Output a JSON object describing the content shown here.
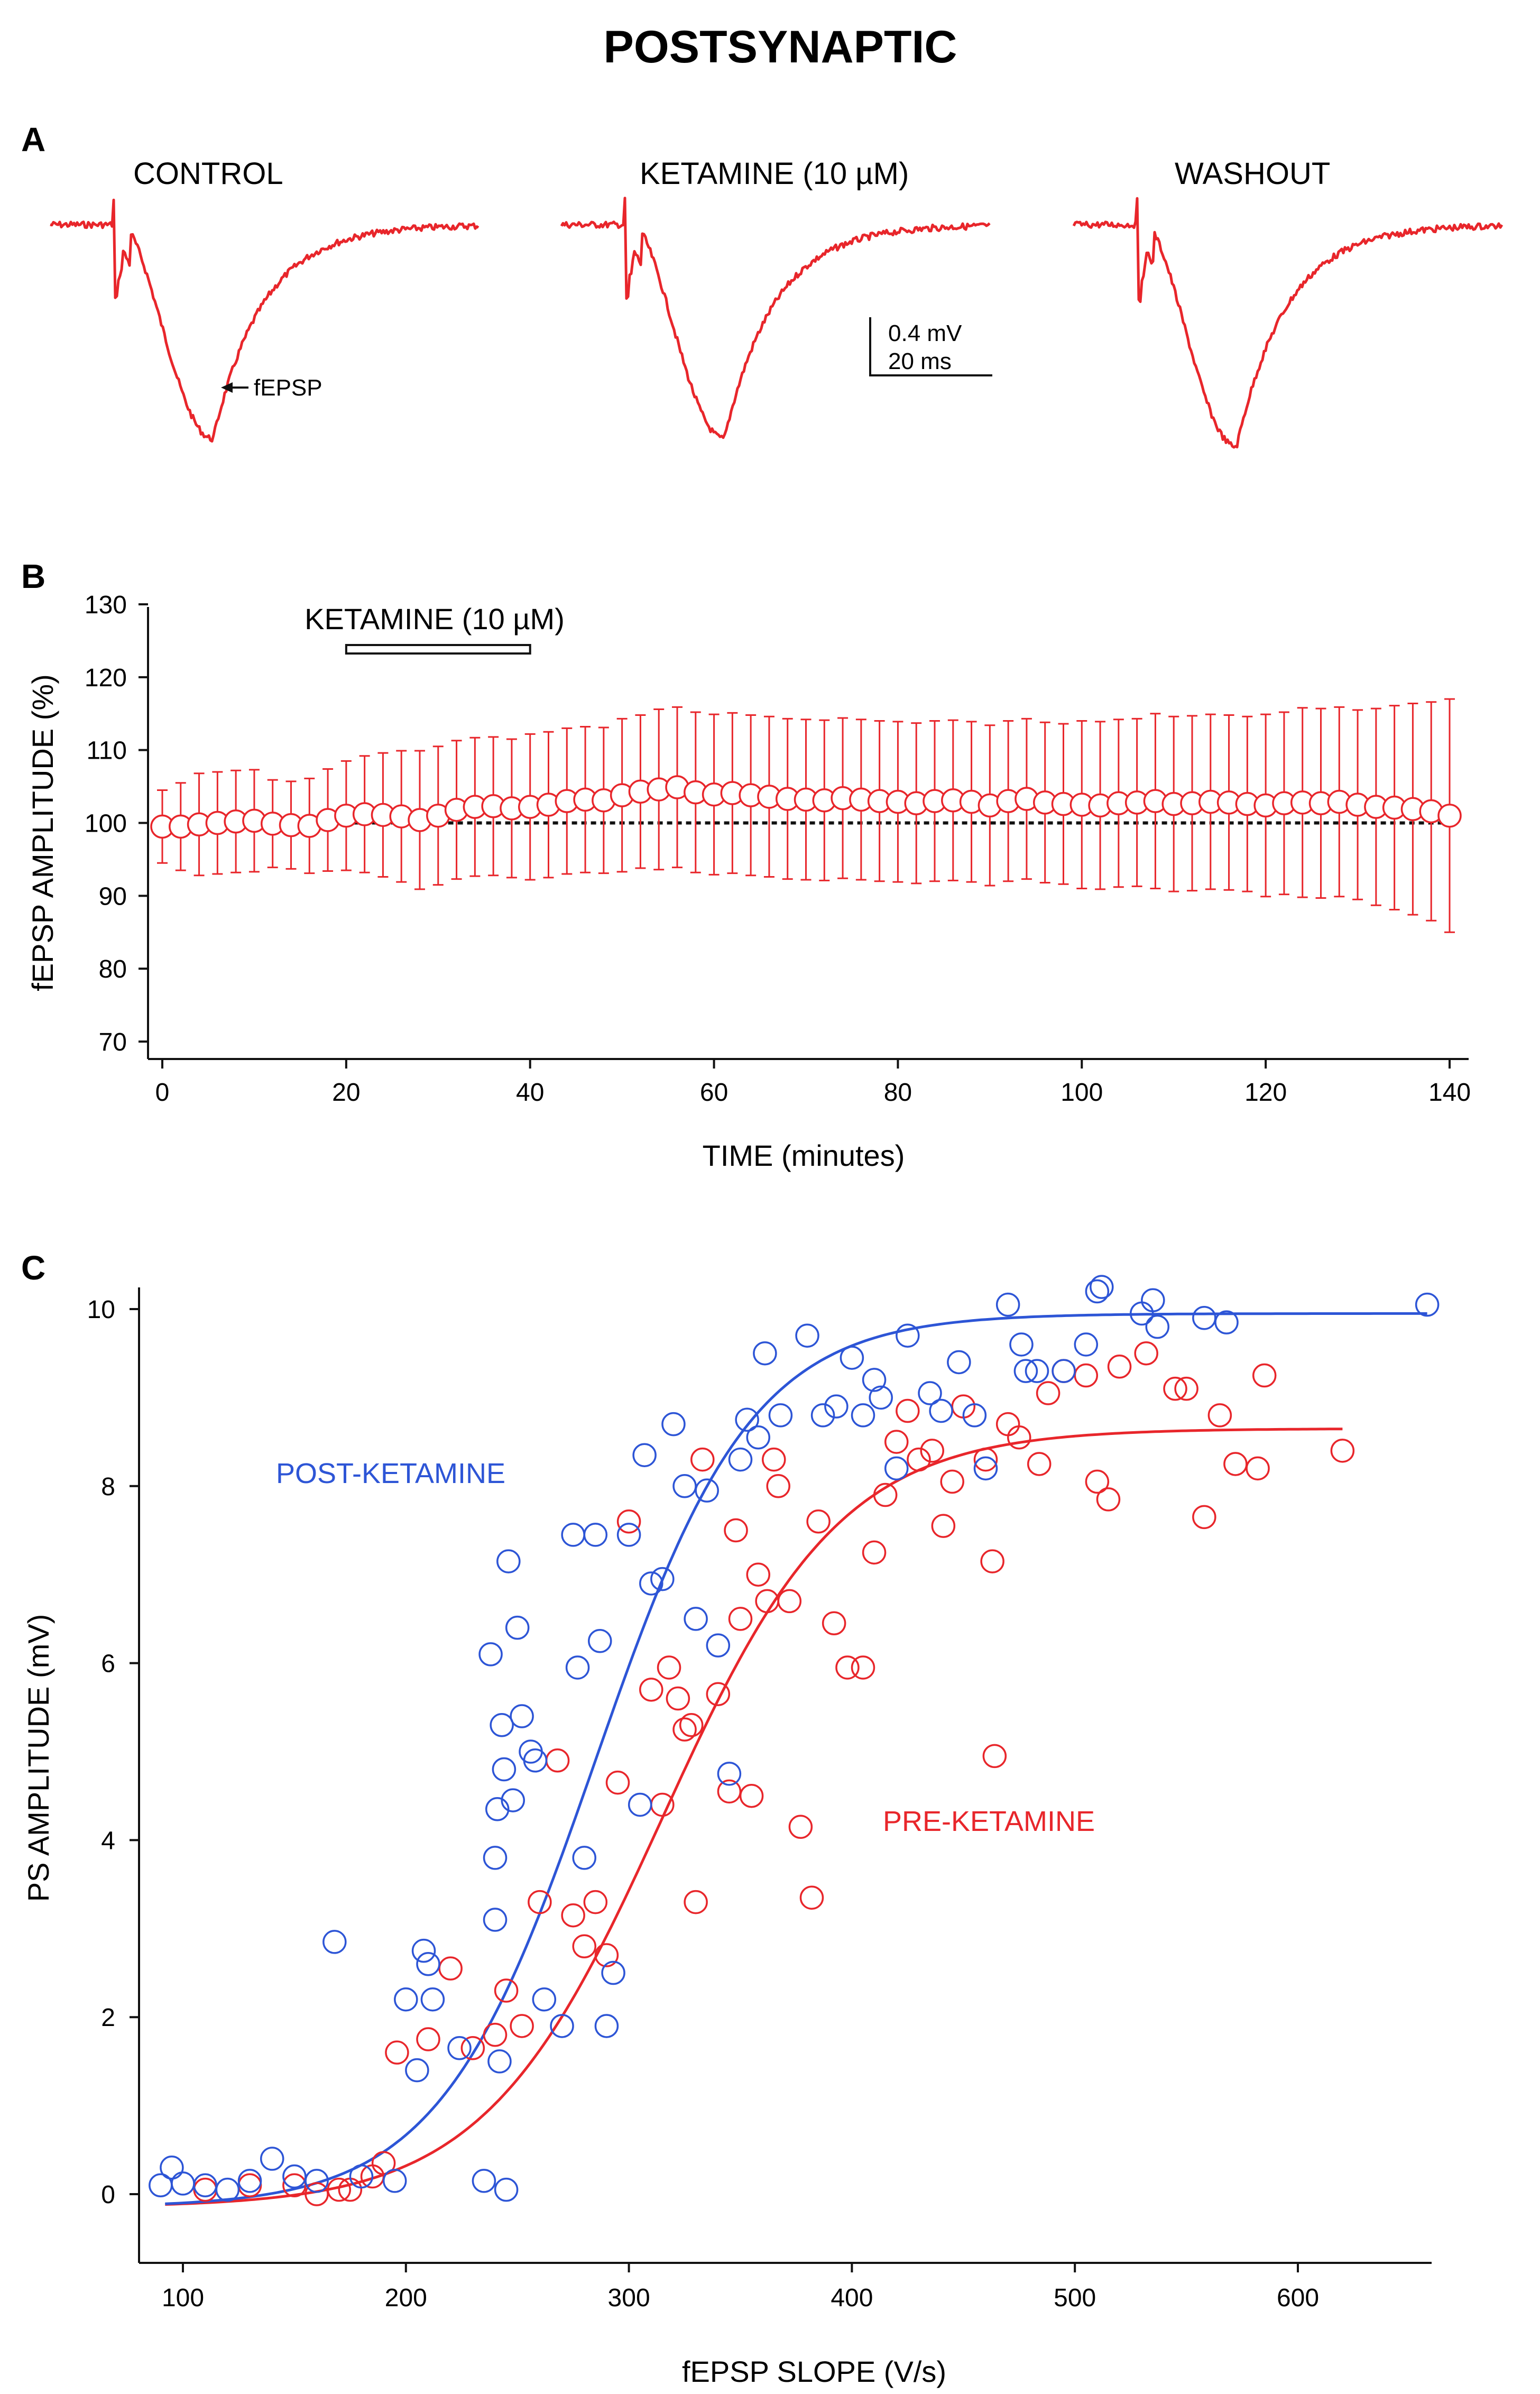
{
  "figure": {
    "title": "POSTSYNAPTIC",
    "panel_a_letter": "A",
    "panel_b_letter": "B",
    "panel_c_letter": "C"
  },
  "panel_a": {
    "conditions": [
      "CONTROL",
      "KETAMINE (10 µM)",
      "WASHOUT"
    ],
    "annotation": "fEPSP",
    "scale_bar": {
      "voltage": "0.4 mV",
      "time": "20 ms"
    },
    "trace_color": "#e8262b"
  },
  "colors": {
    "pre": "#e8262b",
    "post": "#2d55d6",
    "axis": "#111111"
  },
  "chart_data": [
    {
      "type": "scatter",
      "panel": "B",
      "title": "",
      "xlabel": "TIME  (minutes)",
      "ylabel": "fEPSP AMPLITUDE (%)",
      "xlim": [
        -2,
        141
      ],
      "ylim": [
        68,
        131
      ],
      "xticks": [
        0,
        20,
        40,
        60,
        80,
        100,
        120,
        140
      ],
      "xtick_labels": [
        "0",
        "20",
        "40",
        "60",
        "80",
        "100",
        "120",
        "140"
      ],
      "yticks": [
        70,
        80,
        90,
        100,
        110,
        120,
        130
      ],
      "ytick_labels": [
        "70",
        "80",
        "90",
        "100",
        "110",
        "120",
        "130"
      ],
      "baseline": 100,
      "drug_bar": {
        "label": "KETAMINE (10 µM)",
        "start": 20,
        "end": 40
      },
      "series": [
        {
          "name": "fEPSP amplitude",
          "x": [
            0,
            2,
            4,
            6,
            8,
            10,
            12,
            14,
            16,
            18,
            20,
            22,
            24,
            26,
            28,
            30,
            32,
            34,
            36,
            38,
            40,
            42,
            44,
            46,
            48,
            50,
            52,
            54,
            56,
            58,
            60,
            62,
            64,
            66,
            68,
            70,
            72,
            74,
            76,
            78,
            80,
            82,
            84,
            86,
            88,
            90,
            92,
            94,
            96,
            98,
            100,
            102,
            104,
            106,
            108,
            110,
            112,
            114,
            116,
            118,
            120,
            122,
            124,
            126,
            128,
            130,
            132,
            134,
            136,
            138,
            140
          ],
          "values": [
            99.5,
            99.5,
            99.8,
            100,
            100.2,
            100.3,
            99.9,
            99.7,
            99.6,
            100.4,
            101,
            101.2,
            101.1,
            100.9,
            100.4,
            101,
            101.8,
            102.2,
            102.3,
            102,
            102.2,
            102.5,
            103,
            103.2,
            103.1,
            103.8,
            104.3,
            104.6,
            104.9,
            104.2,
            103.9,
            104.1,
            103.8,
            103.6,
            103.3,
            103.2,
            103.1,
            103.4,
            103.2,
            103,
            102.9,
            102.7,
            103,
            103.1,
            102.9,
            102.4,
            103,
            103.3,
            102.8,
            102.6,
            102.5,
            102.4,
            102.7,
            102.8,
            103,
            102.6,
            102.7,
            102.9,
            102.8,
            102.6,
            102.4,
            102.7,
            102.8,
            102.7,
            102.9,
            102.5,
            102.2,
            102.1,
            101.9,
            101.6,
            101
          ],
          "error": [
            5,
            6,
            7,
            7,
            7,
            7,
            6,
            6,
            6.5,
            7,
            7.5,
            8,
            8.5,
            9,
            9.5,
            9.5,
            9.5,
            9.5,
            9.5,
            9.5,
            10,
            10,
            10,
            10,
            10,
            10.5,
            10.5,
            11,
            11,
            11,
            11,
            11,
            11,
            11,
            11,
            11,
            11,
            11,
            11,
            11,
            11,
            11,
            11,
            11,
            11,
            11,
            11,
            11,
            11,
            11,
            11.5,
            11.5,
            11.5,
            11.5,
            12,
            12,
            12,
            12,
            12,
            12,
            12.5,
            12.5,
            13,
            13,
            13,
            13,
            13.5,
            14,
            14.5,
            15,
            16
          ]
        }
      ]
    },
    {
      "type": "scatter",
      "panel": "C",
      "title": "",
      "xlabel": "fEPSP SLOPE (V/s)",
      "ylabel": "PS AMPLITUDE (mV)",
      "xlim": [
        82,
        660
      ],
      "ylim": [
        -0.5,
        10.3
      ],
      "xticks": [
        100,
        200,
        300,
        400,
        500,
        600
      ],
      "xtick_labels": [
        "100",
        "200",
        "300",
        "400",
        "500",
        "600"
      ],
      "yticks": [
        0,
        2,
        4,
        6,
        8,
        10
      ],
      "ytick_labels": [
        "0",
        "2",
        "4",
        "6",
        "8",
        "10"
      ],
      "series": [
        {
          "name": "POST-KETAMINE",
          "color": "#2d55d6",
          "fit": {
            "A": 10.1,
            "x50": 285,
            "k": 35,
            "x_range": [
              92,
              658
            ]
          },
          "points": [
            [
              90,
              0.1
            ],
            [
              95,
              0.3
            ],
            [
              100,
              0.12
            ],
            [
              110,
              0.1
            ],
            [
              120,
              0.05
            ],
            [
              130,
              0.15
            ],
            [
              140,
              0.4
            ],
            [
              150,
              0.2
            ],
            [
              160,
              0.15
            ],
            [
              168,
              2.85
            ],
            [
              180,
              0.2
            ],
            [
              195,
              0.15
            ],
            [
              200,
              2.2
            ],
            [
              205,
              1.4
            ],
            [
              208,
              2.75
            ],
            [
              210,
              2.6
            ],
            [
              212,
              2.2
            ],
            [
              224,
              1.65
            ],
            [
              235,
              0.15
            ],
            [
              238,
              6.1
            ],
            [
              240,
              3.1
            ],
            [
              241,
              4.35
            ],
            [
              243,
              5.3
            ],
            [
              244,
              4.8
            ],
            [
              246,
              7.15
            ],
            [
              248,
              4.45
            ],
            [
              250,
              6.4
            ],
            [
              252,
              5.4
            ],
            [
              256,
              5.0
            ],
            [
              258,
              4.9
            ],
            [
              240,
              3.8
            ],
            [
              242,
              1.5
            ],
            [
              245,
              0.05
            ],
            [
              262,
              2.2
            ],
            [
              270,
              1.9
            ],
            [
              275,
              7.45
            ],
            [
              277,
              5.95
            ],
            [
              280,
              3.8
            ],
            [
              285,
              7.45
            ],
            [
              287,
              6.25
            ],
            [
              290,
              1.9
            ],
            [
              293,
              2.5
            ],
            [
              300,
              7.45
            ],
            [
              305,
              4.4
            ],
            [
              307,
              8.35
            ],
            [
              310,
              6.9
            ],
            [
              315,
              6.95
            ],
            [
              320,
              8.7
            ],
            [
              325,
              8.0
            ],
            [
              330,
              6.5
            ],
            [
              335,
              7.95
            ],
            [
              340,
              6.2
            ],
            [
              345,
              4.75
            ],
            [
              350,
              8.3
            ],
            [
              353,
              8.75
            ],
            [
              358,
              8.55
            ],
            [
              361,
              9.5
            ],
            [
              368,
              8.8
            ],
            [
              380,
              9.7
            ],
            [
              387,
              8.8
            ],
            [
              393,
              8.9
            ],
            [
              400,
              9.45
            ],
            [
              405,
              8.8
            ],
            [
              410,
              9.2
            ],
            [
              413,
              9.0
            ],
            [
              420,
              8.2
            ],
            [
              425,
              9.7
            ],
            [
              435,
              9.05
            ],
            [
              440,
              8.85
            ],
            [
              448,
              9.4
            ],
            [
              455,
              8.8
            ],
            [
              460,
              8.2
            ],
            [
              470,
              10.05
            ],
            [
              476,
              9.6
            ],
            [
              478,
              9.3
            ],
            [
              483,
              9.3
            ],
            [
              495,
              9.3
            ],
            [
              505,
              9.6
            ],
            [
              510,
              10.2
            ],
            [
              512,
              10.25
            ],
            [
              530,
              9.95
            ],
            [
              535,
              10.1
            ],
            [
              537,
              9.8
            ],
            [
              558,
              9.9
            ],
            [
              568,
              9.85
            ],
            [
              658,
              10.05
            ]
          ]
        },
        {
          "name": "PRE-KETAMINE",
          "color": "#e8262b",
          "fit": {
            "A": 8.8,
            "x50": 315,
            "k": 40,
            "x_range": [
              92,
              620
            ]
          },
          "points": [
            [
              110,
              0.05
            ],
            [
              130,
              0.1
            ],
            [
              150,
              0.1
            ],
            [
              160,
              0.0
            ],
            [
              170,
              0.05
            ],
            [
              175,
              0.05
            ],
            [
              185,
              0.2
            ],
            [
              190,
              0.35
            ],
            [
              196,
              1.6
            ],
            [
              210,
              1.75
            ],
            [
              220,
              2.55
            ],
            [
              230,
              1.65
            ],
            [
              240,
              1.8
            ],
            [
              245,
              2.3
            ],
            [
              252,
              1.9
            ],
            [
              260,
              3.3
            ],
            [
              268,
              4.9
            ],
            [
              275,
              3.15
            ],
            [
              280,
              2.8
            ],
            [
              285,
              3.3
            ],
            [
              290,
              2.7
            ],
            [
              295,
              4.65
            ],
            [
              300,
              7.6
            ],
            [
              310,
              5.7
            ],
            [
              315,
              4.4
            ],
            [
              318,
              5.95
            ],
            [
              322,
              5.6
            ],
            [
              325,
              5.25
            ],
            [
              328,
              5.3
            ],
            [
              330,
              3.3
            ],
            [
              333,
              8.3
            ],
            [
              340,
              5.65
            ],
            [
              345,
              4.55
            ],
            [
              348,
              7.5
            ],
            [
              350,
              6.5
            ],
            [
              355,
              4.5
            ],
            [
              358,
              7.0
            ],
            [
              362,
              6.7
            ],
            [
              365,
              8.3
            ],
            [
              367,
              8.0
            ],
            [
              372,
              6.7
            ],
            [
              377,
              4.15
            ],
            [
              382,
              3.35
            ],
            [
              385,
              7.6
            ],
            [
              392,
              6.45
            ],
            [
              398,
              5.95
            ],
            [
              405,
              5.95
            ],
            [
              410,
              7.25
            ],
            [
              415,
              7.9
            ],
            [
              420,
              8.5
            ],
            [
              425,
              8.85
            ],
            [
              430,
              8.3
            ],
            [
              436,
              8.4
            ],
            [
              441,
              7.55
            ],
            [
              445,
              8.05
            ],
            [
              450,
              8.9
            ],
            [
              460,
              8.3
            ],
            [
              463,
              7.15
            ],
            [
              464,
              4.95
            ],
            [
              470,
              8.7
            ],
            [
              475,
              8.55
            ],
            [
              484,
              8.25
            ],
            [
              488,
              9.05
            ],
            [
              495,
              9.3
            ],
            [
              505,
              9.25
            ],
            [
              510,
              8.05
            ],
            [
              515,
              7.85
            ],
            [
              520,
              9.35
            ],
            [
              532,
              9.5
            ],
            [
              545,
              9.1
            ],
            [
              550,
              9.1
            ],
            [
              558,
              7.65
            ],
            [
              565,
              8.8
            ],
            [
              572,
              8.25
            ],
            [
              582,
              8.2
            ],
            [
              585,
              9.25
            ],
            [
              620,
              8.4
            ]
          ]
        }
      ]
    }
  ]
}
